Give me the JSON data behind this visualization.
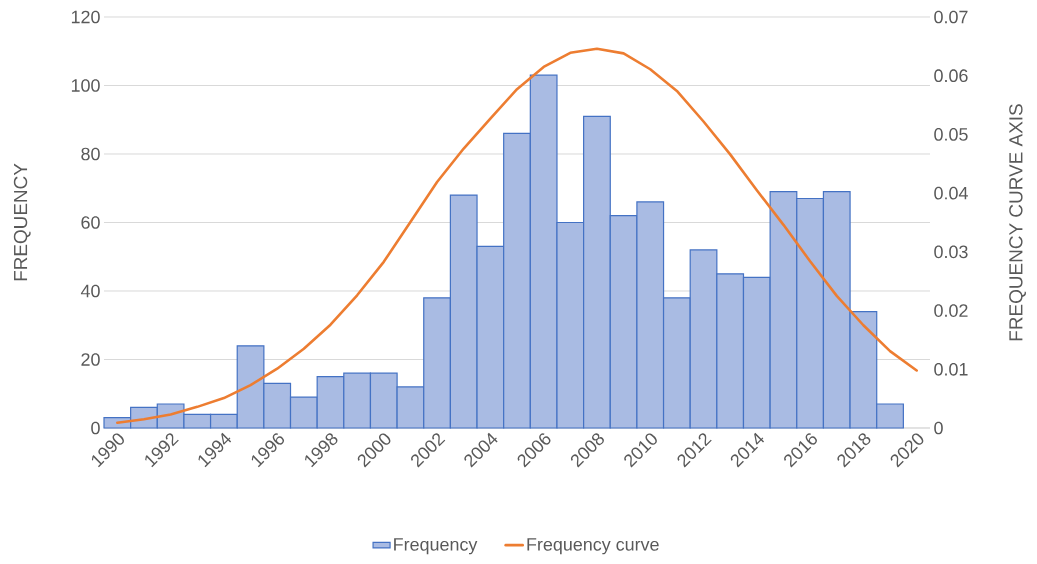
{
  "chart_data": {
    "type": "bar",
    "categories": [
      "1990",
      null,
      "1992",
      null,
      "1994",
      null,
      "1996",
      null,
      "1998",
      null,
      "2000",
      null,
      "2002",
      null,
      "2004",
      null,
      "2006",
      null,
      "2008",
      null,
      "2010",
      null,
      "2012",
      null,
      "2014",
      null,
      "2016",
      null,
      "2018",
      null,
      "2020"
    ],
    "series": [
      {
        "name": "Frequency",
        "color": "#a9bbe3",
        "values": [
          3,
          6,
          7,
          4,
          4,
          24,
          13,
          9,
          15,
          16,
          16,
          12,
          38,
          68,
          53,
          86,
          103,
          60,
          91,
          62,
          66,
          38,
          52,
          45,
          44,
          69,
          67,
          69,
          34,
          7,
          null
        ]
      },
      {
        "name": "Frequency curve",
        "type": "line",
        "axis": "y2",
        "color": "#ed7d31",
        "values": [
          0.0009,
          0.0015,
          0.0023,
          0.0036,
          0.0051,
          0.0073,
          0.0101,
          0.0135,
          0.0176,
          0.0226,
          0.0283,
          0.0351,
          0.0419,
          0.0476,
          0.0527,
          0.0577,
          0.0615,
          0.0639,
          0.0646,
          0.0638,
          0.0611,
          0.0574,
          0.0522,
          0.0466,
          0.0405,
          0.0346,
          0.0284,
          0.0225,
          0.0175,
          0.0131,
          0.0098
        ]
      }
    ],
    "ylabel": "FREQUENCY",
    "y2label": "FREQUENCY CURVE AXIS",
    "ylim": [
      0,
      120
    ],
    "yticks": [
      0,
      20,
      40,
      60,
      80,
      100,
      120
    ],
    "y2lim": [
      0,
      0.07
    ],
    "y2ticks": [
      0,
      0.01,
      0.02,
      0.03,
      0.04,
      0.05,
      0.06,
      0.07
    ],
    "grid": "y",
    "legend": "bottom",
    "marker": "none"
  }
}
